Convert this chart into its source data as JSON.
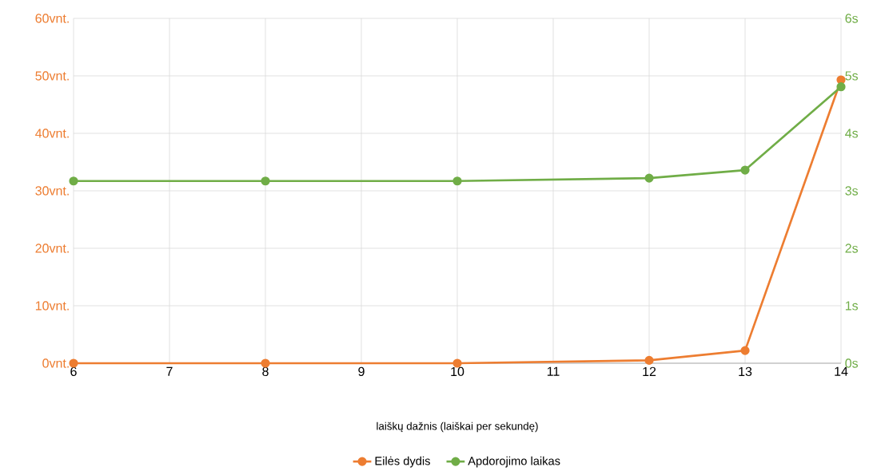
{
  "chart_data": {
    "type": "line",
    "xlabel": "laiškų dažnis  (laiškai per sekundę)",
    "categories": [
      "6",
      "7",
      "8",
      "9",
      "10",
      "11",
      "12",
      "13",
      "14"
    ],
    "series": [
      {
        "name": "Eilės dydis",
        "color": "#ed7d31",
        "values": [
          0,
          null,
          0,
          null,
          0,
          null,
          0.5,
          2.2,
          49.3
        ]
      },
      {
        "name": "Apdorojimo laikas",
        "color": "#70ad47",
        "axis": "y2",
        "values": [
          3.17,
          null,
          3.17,
          null,
          3.17,
          null,
          3.22,
          3.36,
          4.81
        ]
      }
    ],
    "ylim": [
      0,
      60
    ],
    "yticks": [
      {
        "value": 0,
        "label": "0vnt."
      },
      {
        "value": 10,
        "label": "10vnt."
      },
      {
        "value": 20,
        "label": "20vnt."
      },
      {
        "value": 30,
        "label": "30vnt."
      },
      {
        "value": 40,
        "label": "40vnt."
      },
      {
        "value": 50,
        "label": "50vnt."
      },
      {
        "value": 60,
        "label": "60vnt."
      }
    ],
    "y2lim": [
      0,
      6
    ],
    "y2ticks": [
      {
        "value": 0,
        "label": "0s"
      },
      {
        "value": 1,
        "label": "1s"
      },
      {
        "value": 2,
        "label": "2s"
      },
      {
        "value": 3,
        "label": "3s"
      },
      {
        "value": 4,
        "label": "4s"
      },
      {
        "value": 5,
        "label": "5s"
      },
      {
        "value": 6,
        "label": "6s"
      }
    ],
    "grid": true,
    "legend": "bottom",
    "marker": "circle",
    "line_style": "solid"
  }
}
